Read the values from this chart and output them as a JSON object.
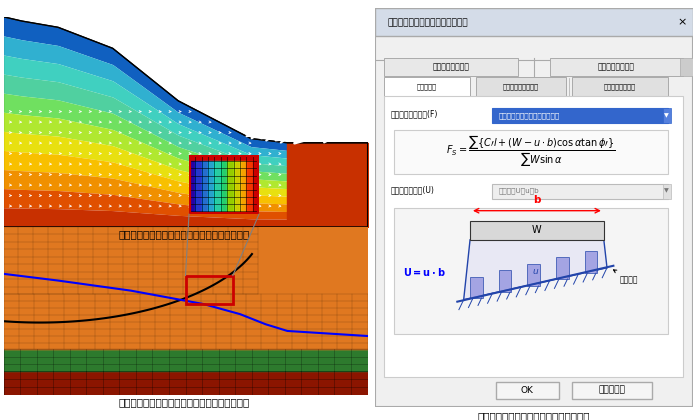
{
  "fig_width": 7.0,
  "fig_height": 4.2,
  "dpi": 100,
  "bg_color": "#ffffff",
  "left_panel": {
    "caption_top": "定常・非定常浸透流解析による地下水面の計算",
    "caption_bottom": "地下水面と水平震度によるすべり安全率の計算"
  },
  "right_panel": {
    "caption": "計算式、物性設定のダイアログボックス",
    "dialog_title": "円弧すべり計算設定のプロパティ",
    "tabs_row1": [
      "すべり円中心設定",
      "すべり円半径設定"
    ],
    "tabs_row2": [
      "計算式設定",
      "円弧すべり計算設定",
      "すべり円条件設定"
    ],
    "label_formula": "安全率計算式選択(F)",
    "dropdown_text": "３：中小河川ガイドライン対応",
    "label_water": "水圧の計算方式(U)",
    "dropdown_water": "２：水圧U＝u・b",
    "btn_ok": "OK",
    "btn_cancel": "キャンセル"
  },
  "terrain_colors_top": [
    "#1060c0",
    "#30b0d0",
    "#40d0c0",
    "#50d0a0",
    "#70e060",
    "#b0e830",
    "#e8e010",
    "#f8c000",
    "#f09000",
    "#e05000",
    "#c83000"
  ],
  "bottom_layers": {
    "dark_red": "#8b1500",
    "green": "#2d7a2d",
    "orange": "#e07820"
  }
}
